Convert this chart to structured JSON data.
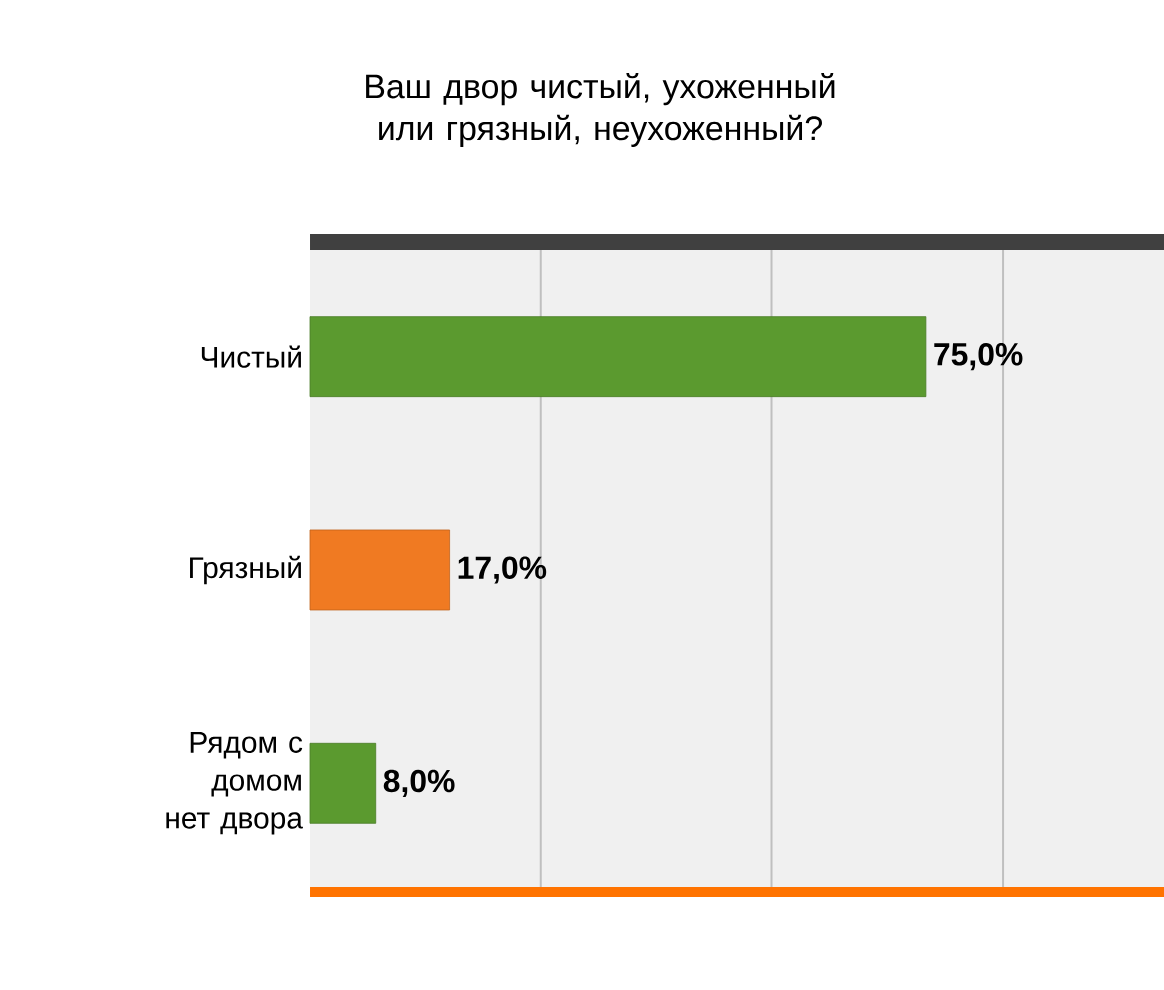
{
  "chart_data": {
    "type": "bar",
    "orientation": "horizontal",
    "title": "Ваш двор чистый, ухоженный или грязный, неухоженный?",
    "categories": [
      "Чистый",
      "Грязный",
      "Рядом с домом нет двора"
    ],
    "values": [
      75,
      17,
      8
    ],
    "colors": [
      "#5b9a2f",
      "#f07a22",
      "#5b9a2f"
    ],
    "value_labels": [
      "75,0%",
      "17,0%",
      "8,0%"
    ],
    "xlim": [
      0,
      104
    ],
    "xticks": [
      {
        "value": 28.1,
        "label": null
      },
      {
        "value": 56.2,
        "label": null
      },
      {
        "value": 84.4,
        "label": null
      }
    ],
    "grid": "x",
    "tick_labels": "y"
  }
}
